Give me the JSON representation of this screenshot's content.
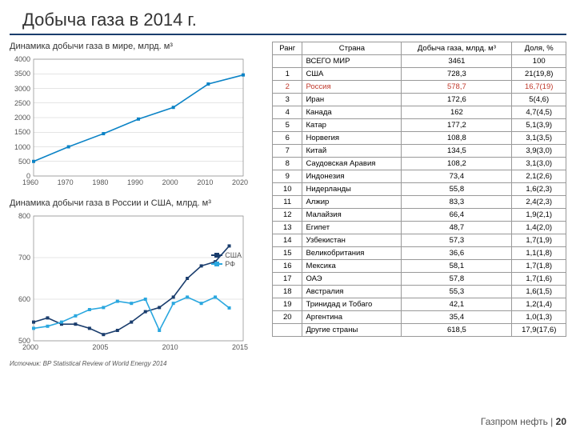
{
  "title": "Добыча газа в 2014 г.",
  "world_chart": {
    "title": "Динамика добычи газа в мире, млрд. м³",
    "type": "line",
    "x": [
      1960,
      1970,
      1980,
      1990,
      2000,
      2010,
      2020
    ],
    "xlim": [
      1960,
      2020
    ],
    "ylim": [
      0,
      4000
    ],
    "yticks": [
      0,
      500,
      1000,
      1500,
      2000,
      2500,
      3000,
      3500,
      4000
    ],
    "series": {
      "color": "#0b83c6",
      "values": [
        500,
        1000,
        1450,
        1950,
        2350,
        3150,
        3461
      ]
    },
    "background": "#ffffff",
    "grid_color": "#c9c9c9"
  },
  "ru_us_chart": {
    "title": "Динамика добычи газа в России и США, млрд. м³",
    "type": "line",
    "x_years": [
      2000,
      2005,
      2010,
      2015
    ],
    "xlim": [
      2000,
      2015
    ],
    "ylim": [
      500,
      800
    ],
    "yticks": [
      500,
      600,
      700,
      800
    ],
    "series": [
      {
        "name": "США",
        "color": "#1a3d6d",
        "marker": "square",
        "x": [
          2000,
          2001,
          2002,
          2003,
          2004,
          2005,
          2006,
          2007,
          2008,
          2009,
          2010,
          2011,
          2012,
          2013,
          2014
        ],
        "y": [
          545,
          555,
          540,
          540,
          530,
          515,
          525,
          545,
          570,
          580,
          605,
          650,
          680,
          690,
          728
        ]
      },
      {
        "name": "РФ",
        "color": "#2aa7df",
        "marker": "square",
        "x": [
          2000,
          2001,
          2002,
          2003,
          2004,
          2005,
          2006,
          2007,
          2008,
          2009,
          2010,
          2011,
          2012,
          2013,
          2014
        ],
        "y": [
          530,
          535,
          545,
          560,
          575,
          580,
          595,
          590,
          600,
          525,
          590,
          605,
          590,
          605,
          579
        ]
      }
    ],
    "background": "#ffffff",
    "grid_color": "#c9c9c9",
    "legend_labels": {
      "usa": "США",
      "rf": "РФ"
    }
  },
  "table": {
    "columns": [
      "Ранг",
      "Страна",
      "Добыча газа, млрд. м³",
      "Доля, %"
    ],
    "total_row": {
      "country": "ВСЕГО МИР",
      "value": "3461",
      "share": "100"
    },
    "rows": [
      {
        "rank": "1",
        "country": "США",
        "value": "728,3",
        "share": "21(19,8)"
      },
      {
        "rank": "2",
        "country": "Россия",
        "value": "578,7",
        "share": "16,7(19)",
        "hl": true
      },
      {
        "rank": "3",
        "country": "Иран",
        "value": "172,6",
        "share": "5(4,6)"
      },
      {
        "rank": "4",
        "country": "Канада",
        "value": "162",
        "share": "4,7(4,5)"
      },
      {
        "rank": "5",
        "country": "Катар",
        "value": "177,2",
        "share": "5,1(3,9)"
      },
      {
        "rank": "6",
        "country": "Норвегия",
        "value": "108,8",
        "share": "3,1(3,5)"
      },
      {
        "rank": "7",
        "country": "Китай",
        "value": "134,5",
        "share": "3,9(3,0)"
      },
      {
        "rank": "8",
        "country": "Саудовская Аравия",
        "value": "108,2",
        "share": "3,1(3,0)"
      },
      {
        "rank": "9",
        "country": "Индонезия",
        "value": "73,4",
        "share": "2,1(2,6)"
      },
      {
        "rank": "10",
        "country": "Нидерланды",
        "value": "55,8",
        "share": "1,6(2,3)"
      },
      {
        "rank": "11",
        "country": "Алжир",
        "value": "83,3",
        "share": "2,4(2,3)"
      },
      {
        "rank": "12",
        "country": "Малайзия",
        "value": "66,4",
        "share": "1,9(2,1)"
      },
      {
        "rank": "13",
        "country": "Египет",
        "value": "48,7",
        "share": "1,4(2,0)"
      },
      {
        "rank": "14",
        "country": "Узбекистан",
        "value": "57,3",
        "share": "1,7(1,9)"
      },
      {
        "rank": "15",
        "country": "Великобритания",
        "value": "36,6",
        "share": "1,1(1,8)"
      },
      {
        "rank": "16",
        "country": "Мексика",
        "value": "58,1",
        "share": "1,7(1,8)"
      },
      {
        "rank": "17",
        "country": "ОАЭ",
        "value": "57,8",
        "share": "1,7(1,6)"
      },
      {
        "rank": "18",
        "country": "Австралия",
        "value": "55,3",
        "share": "1,6(1,5)"
      },
      {
        "rank": "19",
        "country": "Тринидад и Тобаго",
        "value": "42,1",
        "share": "1,2(1,4)"
      },
      {
        "rank": "20",
        "country": "Аргентина",
        "value": "35,4",
        "share": "1,0(1,3)"
      },
      {
        "rank": "",
        "country": "Другие страны",
        "value": "618,5",
        "share": "17,9(17,6)"
      }
    ]
  },
  "source": "Источник: BP Statistical Review of World Energy 2014",
  "footer": {
    "brand": "Газпром нефть",
    "page": "20"
  }
}
